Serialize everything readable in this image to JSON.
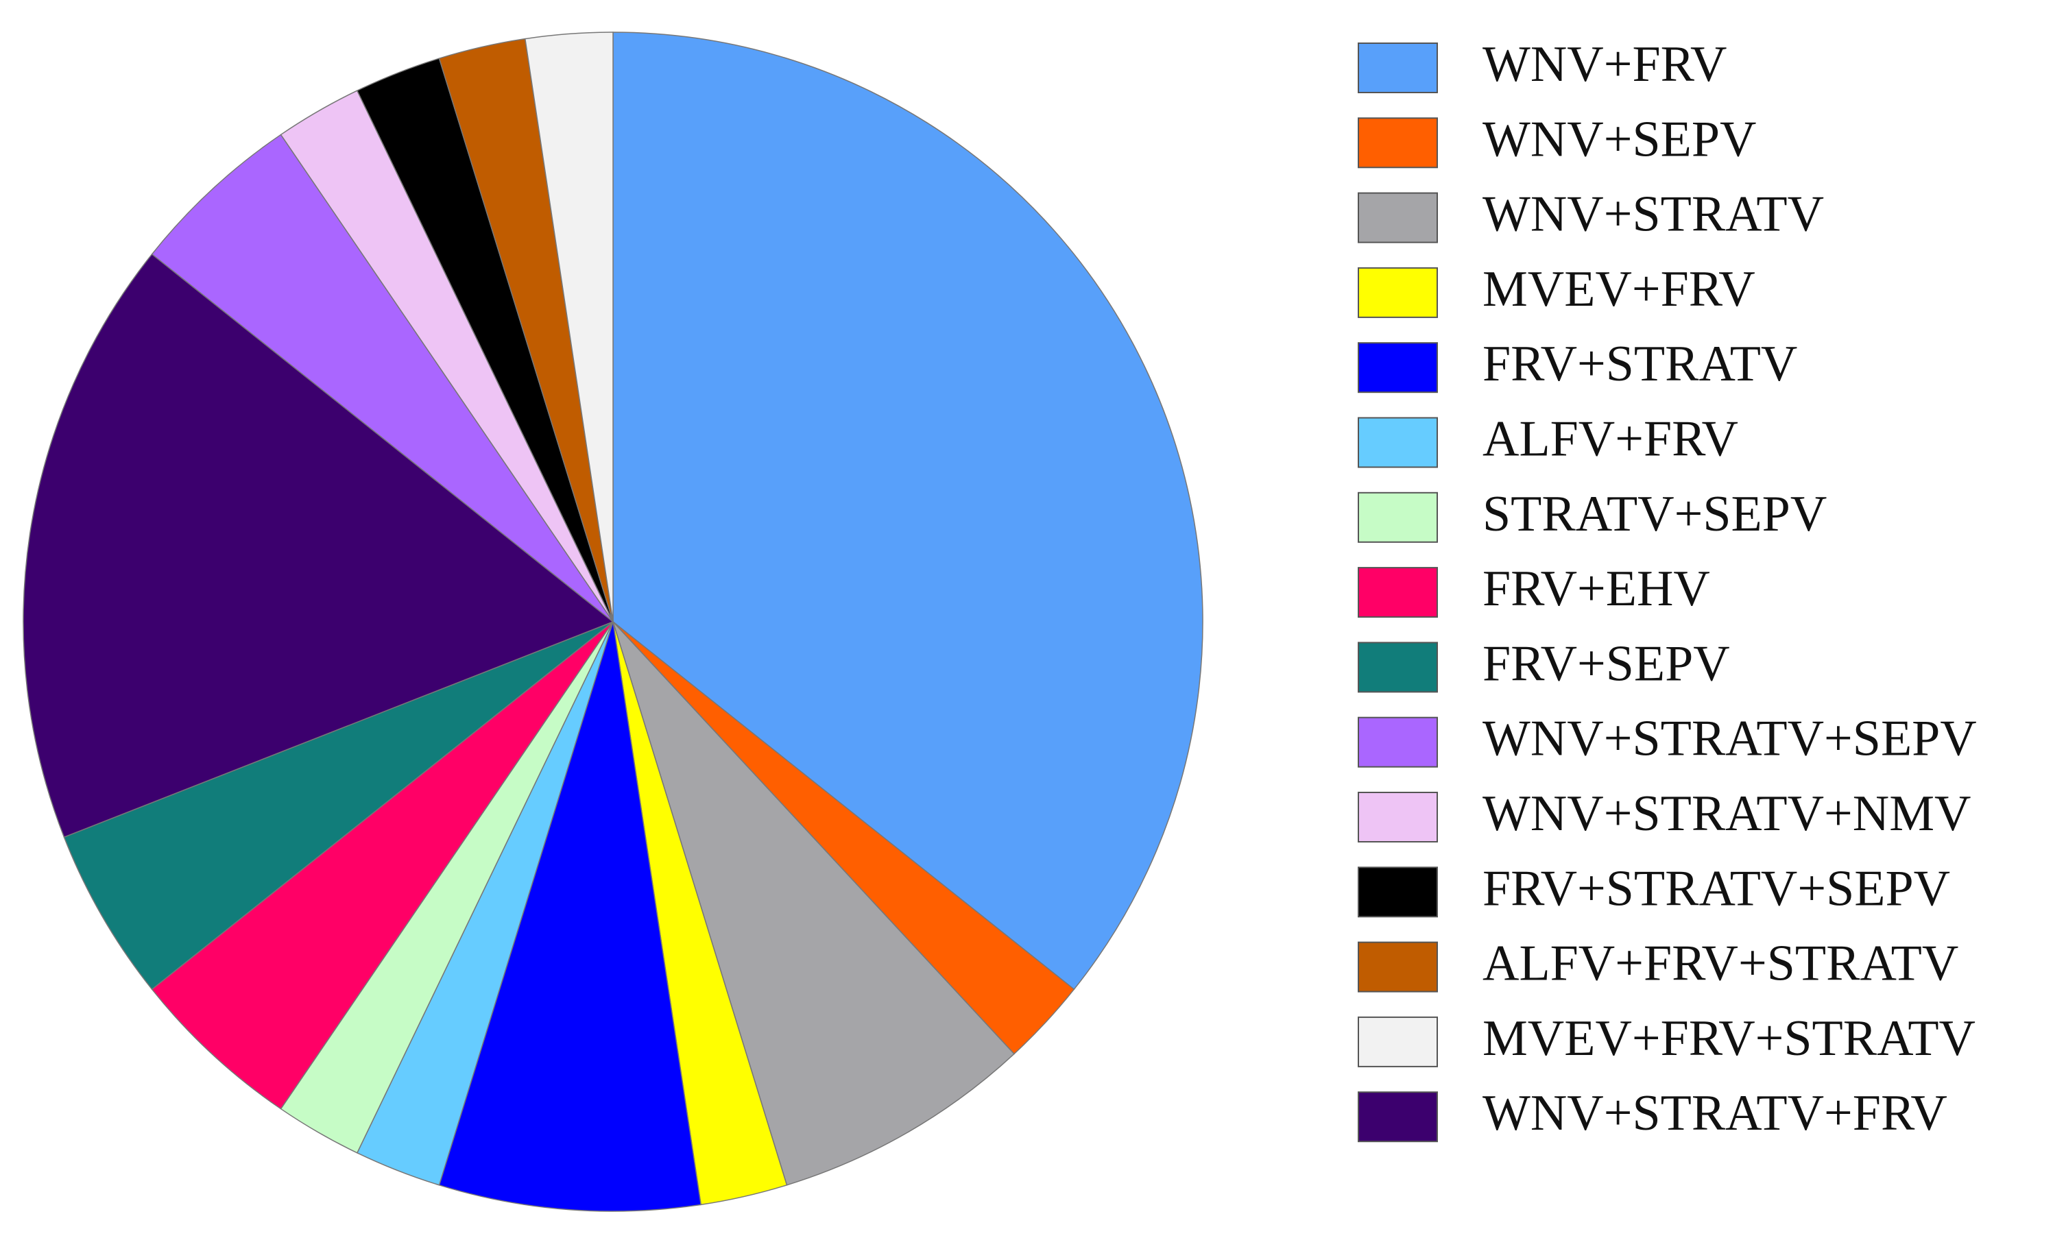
{
  "chart_data": {
    "type": "pie",
    "categories": [
      "WNV+FRV",
      "WNV+SEPV",
      "WNV+STRATV",
      "MVEV+FRV",
      "FRV+STRATV",
      "ALFV+FRV",
      "STRATV+SEPV",
      "FRV+EHV",
      "FRV+SEPV",
      "WNV+STRATV+SEPV",
      "WNV+STRATV+NMV",
      "FRV+STRATV+SEPV",
      "ALFV+FRV+STRATV",
      "MVEV+FRV+STRATV",
      "WNV+STRATV+FRV"
    ],
    "values": [
      15,
      1,
      3,
      1,
      3,
      1,
      1,
      2,
      2,
      2,
      1,
      1,
      1,
      1,
      7
    ],
    "colors": [
      "#58a0fa",
      "#ff5f00",
      "#a5a5a8",
      "#ffff00",
      "#0000ff",
      "#66ccff",
      "#c6fcc6",
      "#ff0066",
      "#117d7a",
      "#aa66ff",
      "#eec4f5",
      "#000000",
      "#c05c00",
      "#f2f2f2",
      "#3c006e"
    ],
    "slice_order": [
      0,
      1,
      2,
      3,
      4,
      5,
      6,
      7,
      8,
      14,
      9,
      10,
      11,
      12,
      13
    ],
    "legend": "right"
  }
}
